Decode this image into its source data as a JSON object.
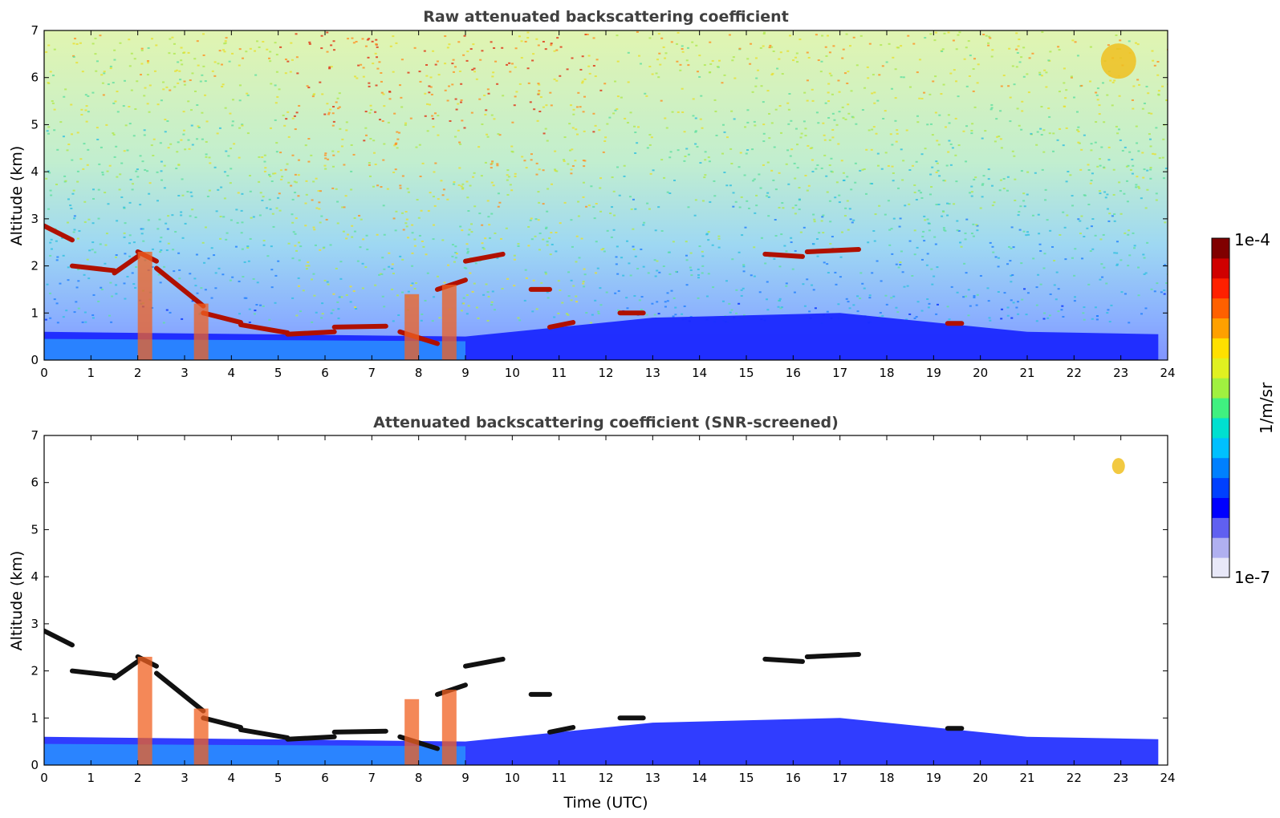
{
  "chart_data": [
    {
      "type": "heatmap",
      "title": "Raw attenuated backscattering coefficient",
      "xlabel": "",
      "ylabel": "Altitude (km)",
      "xlim": [
        0,
        24
      ],
      "ylim": [
        0,
        7
      ],
      "xticks": [
        0,
        1,
        2,
        3,
        4,
        5,
        6,
        7,
        8,
        9,
        10,
        11,
        12,
        13,
        14,
        15,
        16,
        17,
        18,
        19,
        20,
        21,
        22,
        23,
        24
      ],
      "yticks": [
        0,
        1,
        2,
        3,
        4,
        5,
        6,
        7
      ],
      "screened": false
    },
    {
      "type": "heatmap",
      "title": "Attenuated backscattering coefficient (SNR-screened)",
      "xlabel": "Time (UTC)",
      "ylabel": "Altitude (km)",
      "xlim": [
        0,
        24
      ],
      "ylim": [
        0,
        7
      ],
      "xticks": [
        0,
        1,
        2,
        3,
        4,
        5,
        6,
        7,
        8,
        9,
        10,
        11,
        12,
        13,
        14,
        15,
        16,
        17,
        18,
        19,
        20,
        21,
        22,
        23,
        24
      ],
      "yticks": [
        0,
        1,
        2,
        3,
        4,
        5,
        6,
        7
      ],
      "screened": true
    }
  ],
  "colorbar": {
    "label": "1/m/sr",
    "max_label": "1e-4",
    "min_label": "1e-7",
    "range": [
      1e-07,
      0.0001
    ],
    "scale": "log",
    "colors": [
      "#e8e8f8",
      "#b0b0f0",
      "#6060f0",
      "#0000ff",
      "#0040ff",
      "#0080ff",
      "#00c0ff",
      "#00e0d0",
      "#40f080",
      "#a0f040",
      "#e0f020",
      "#ffe000",
      "#ffa000",
      "#ff6000",
      "#ff2000",
      "#d00000",
      "#800000"
    ]
  },
  "features": {
    "cloud_layers": [
      {
        "t": [
          0.0,
          0.6
        ],
        "alt": [
          2.85,
          2.55
        ]
      },
      {
        "t": [
          0.6,
          1.5
        ],
        "alt": [
          2.0,
          1.9
        ]
      },
      {
        "t": [
          1.5,
          2.0
        ],
        "alt": [
          1.85,
          2.2
        ]
      },
      {
        "t": [
          2.0,
          2.4
        ],
        "alt": [
          2.3,
          2.1
        ]
      },
      {
        "t": [
          2.4,
          3.4
        ],
        "alt": [
          1.95,
          1.15
        ]
      },
      {
        "t": [
          3.4,
          4.2
        ],
        "alt": [
          1.0,
          0.8
        ]
      },
      {
        "t": [
          4.2,
          5.2
        ],
        "alt": [
          0.75,
          0.58
        ]
      },
      {
        "t": [
          5.2,
          6.2
        ],
        "alt": [
          0.55,
          0.6
        ]
      },
      {
        "t": [
          6.2,
          7.3
        ],
        "alt": [
          0.7,
          0.72
        ]
      },
      {
        "t": [
          7.6,
          8.4
        ],
        "alt": [
          0.6,
          0.35
        ]
      },
      {
        "t": [
          8.4,
          9.0
        ],
        "alt": [
          1.5,
          1.7
        ]
      },
      {
        "t": [
          9.0,
          9.8
        ],
        "alt": [
          2.1,
          2.25
        ]
      },
      {
        "t": [
          10.4,
          10.8
        ],
        "alt": [
          1.5,
          1.5
        ]
      },
      {
        "t": [
          10.8,
          11.3
        ],
        "alt": [
          0.7,
          0.8
        ]
      },
      {
        "t": [
          12.3,
          12.8
        ],
        "alt": [
          1.0,
          1.0
        ]
      },
      {
        "t": [
          15.4,
          16.2
        ],
        "alt": [
          2.25,
          2.2
        ]
      },
      {
        "t": [
          16.3,
          17.4
        ],
        "alt": [
          2.3,
          2.35
        ]
      },
      {
        "t": [
          19.3,
          19.6
        ],
        "alt": [
          0.78,
          0.78
        ]
      }
    ],
    "high_cloud": {
      "t": [
        22.6,
        23.3
      ],
      "alt": [
        6.1,
        6.6
      ]
    }
  }
}
